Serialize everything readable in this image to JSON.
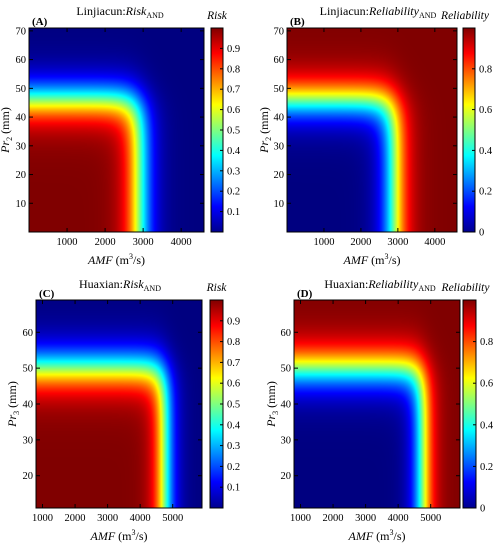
{
  "chart_data": [
    {
      "type": "heatmap",
      "panel_label": "(A)",
      "title": {
        "prefix": "Linjiacun:",
        "main": "Risk",
        "sub": "AND"
      },
      "xlabel": {
        "main": "AMF",
        "unit_pre": " (m",
        "unit_sup": "3",
        "unit_post": "/s)"
      },
      "ylabel": {
        "main": "Pr",
        "sub": "2",
        "unit": " (mm)"
      },
      "xlim": [
        0,
        4600
      ],
      "ylim": [
        0,
        71
      ],
      "xticks": [
        "1000",
        "2000",
        "3000",
        "4000"
      ],
      "yticks": [
        "10",
        "20",
        "30",
        "40",
        "50",
        "60",
        "70"
      ],
      "colorbar_label": "Risk",
      "colorbar_range": [
        0,
        1
      ],
      "colorbar_ticks": [
        "0.1",
        "0.2",
        "0.3",
        "0.4",
        "0.5",
        "0.6",
        "0.7",
        "0.8",
        "0.9"
      ],
      "colormap": "jet",
      "surface": {
        "variable": "risk",
        "x_half": 2900,
        "y_half": 46,
        "x_spread": 210,
        "y_spread": 4.2
      }
    },
    {
      "type": "heatmap",
      "panel_label": "(B)",
      "title": {
        "prefix": "Linjiacun:",
        "main": "Reliability",
        "sub": "AND"
      },
      "xlabel": {
        "main": "AMF",
        "unit_pre": " (m",
        "unit_sup": "3",
        "unit_post": "/s)"
      },
      "ylabel": {
        "main": "Pr",
        "sub": "2",
        "unit": " (mm)"
      },
      "xlim": [
        0,
        4600
      ],
      "ylim": [
        0,
        71
      ],
      "xticks": [
        "1000",
        "2000",
        "3000",
        "4000"
      ],
      "yticks": [
        "10",
        "20",
        "30",
        "40",
        "50",
        "60",
        "70"
      ],
      "colorbar_label": "Reliability",
      "colorbar_range": [
        0,
        1
      ],
      "colorbar_ticks": [
        "0",
        "0.2",
        "0.4",
        "0.6",
        "0.8"
      ],
      "colormap": "jet",
      "surface": {
        "variable": "reliability",
        "x_half": 2900,
        "y_half": 46,
        "x_spread": 210,
        "y_spread": 4.2
      }
    },
    {
      "type": "heatmap",
      "panel_label": "(C)",
      "title": {
        "prefix": "Huaxian:",
        "main": "Risk",
        "sub": "AND"
      },
      "xlabel": {
        "main": "AMF",
        "unit_pre": " (m",
        "unit_sup": "3",
        "unit_post": "/s)"
      },
      "ylabel": {
        "main": "Pr",
        "sub": "3",
        "unit": " (mm)"
      },
      "xlim": [
        800,
        5900
      ],
      "ylim": [
        11,
        69
      ],
      "xticks": [
        "1000",
        "2000",
        "3000",
        "4000",
        "5000"
      ],
      "yticks": [
        "20",
        "30",
        "40",
        "50",
        "60"
      ],
      "colorbar_label": "Risk",
      "colorbar_range": [
        0,
        1
      ],
      "colorbar_ticks": [
        "0.1",
        "0.2",
        "0.3",
        "0.4",
        "0.5",
        "0.6",
        "0.7",
        "0.8",
        "0.9"
      ],
      "colormap": "jet",
      "surface": {
        "variable": "risk",
        "x_half": 4750,
        "y_half": 50,
        "x_spread": 190,
        "y_spread": 3.6
      }
    },
    {
      "type": "heatmap",
      "panel_label": "(D)",
      "title": {
        "prefix": "Huaxian:",
        "main": "Reliability",
        "sub": "AND"
      },
      "xlabel": {
        "main": "AMF",
        "unit_pre": " (m",
        "unit_sup": "3",
        "unit_post": "/s)"
      },
      "ylabel": {
        "main": "Pr",
        "sub": "3",
        "unit": " (mm)"
      },
      "xlim": [
        800,
        5900
      ],
      "ylim": [
        11,
        69
      ],
      "xticks": [
        "1000",
        "2000",
        "3000",
        "4000",
        "5000"
      ],
      "yticks": [
        "20",
        "30",
        "40",
        "50",
        "60"
      ],
      "colorbar_label": "Reliability",
      "colorbar_range": [
        0,
        1
      ],
      "colorbar_ticks": [
        "0",
        "0.2",
        "0.4",
        "0.6",
        "0.8"
      ],
      "colormap": "jet",
      "surface": {
        "variable": "reliability",
        "x_half": 4750,
        "y_half": 50,
        "x_spread": 190,
        "y_spread": 3.6
      }
    }
  ]
}
